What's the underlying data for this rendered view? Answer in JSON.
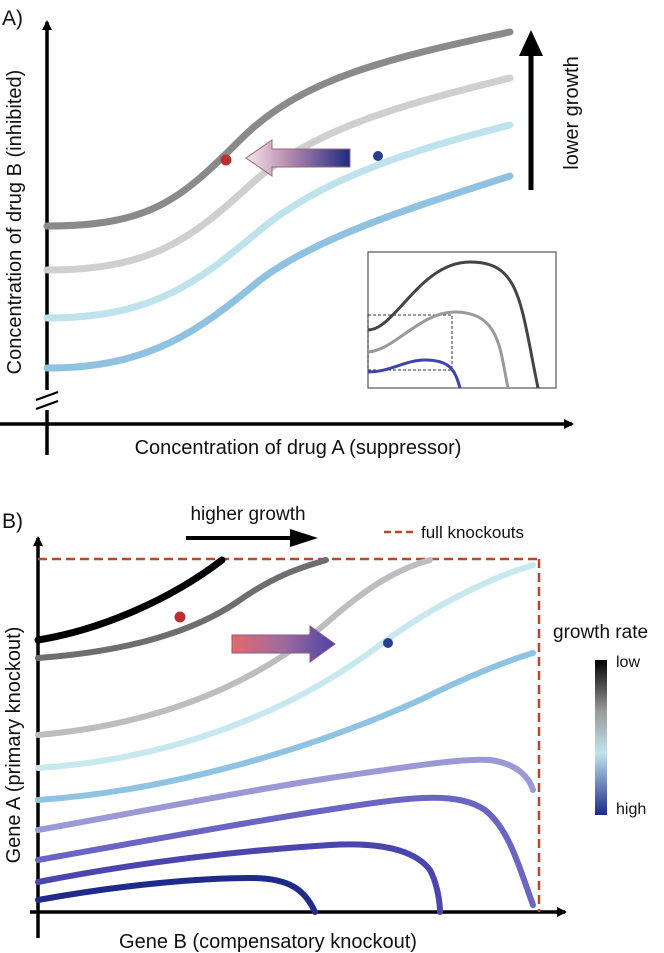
{
  "panel_a": {
    "label": "A)",
    "xlabel": "Concentration of drug A (suppressor)",
    "ylabel": "Concentration of drug B (inhibited)",
    "arrow_label": "lower growth",
    "curve_colors": [
      "#8a8a8a",
      "#cfcfcf",
      "#bfe3ec",
      "#8fc2e0"
    ],
    "marker_colors": [
      "#b8312f",
      "#2b3f8f"
    ]
  },
  "panel_b": {
    "label": "B)",
    "xlabel": "Gene B (compensatory knockout)",
    "ylabel": "Gene A (primary knockout)",
    "arrow_label": "higher growth",
    "legend_knockouts": "full knockouts",
    "colorbar_title": "growth rate",
    "colorbar_low": "low",
    "colorbar_high": "high",
    "colorbar_colors": [
      "#000000",
      "#9a9a9a",
      "#bfe3ec",
      "#1b2a8c"
    ],
    "knockout_color": "#b5482e"
  }
}
